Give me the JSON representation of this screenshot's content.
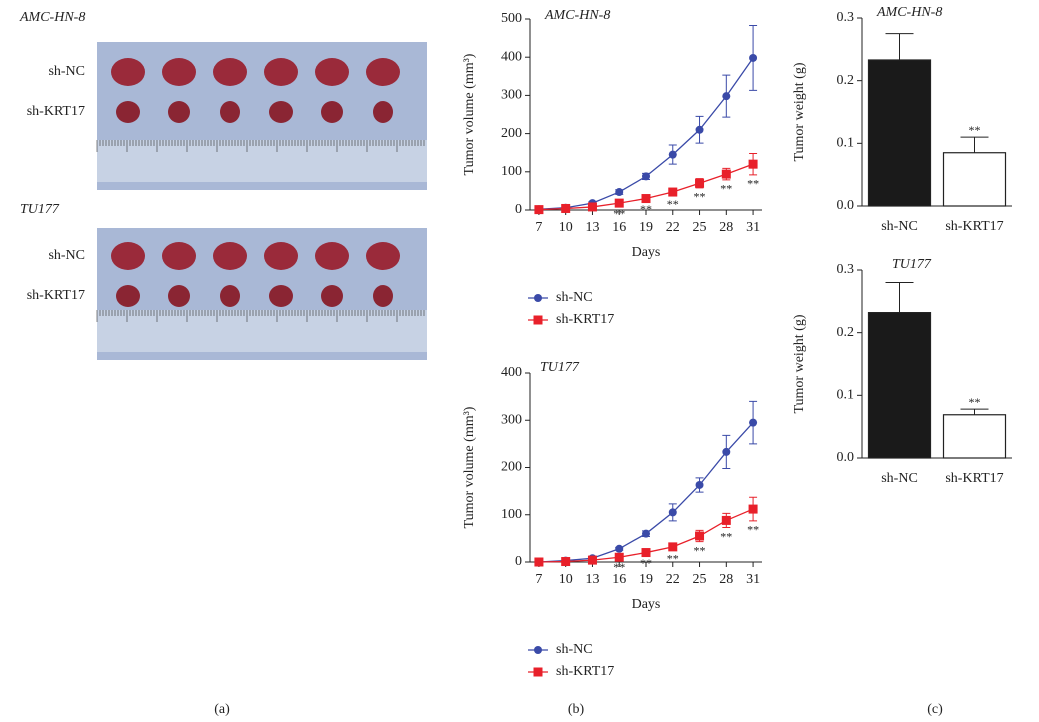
{
  "panel_a": {
    "groups": [
      {
        "title": "AMC-HN-8",
        "rows": [
          "sh-NC",
          "sh-KRT17"
        ]
      },
      {
        "title": "TU177",
        "rows": [
          "sh-NC",
          "sh-KRT17"
        ]
      }
    ]
  },
  "panel_labels": [
    "(a)",
    "(b)",
    "(c)"
  ],
  "chart_data": [
    {
      "type": "line",
      "title": "AMC-HN-8",
      "x_label": "Days",
      "y_label": "Tumor volume (mm³)",
      "x": [
        7,
        10,
        13,
        16,
        19,
        22,
        25,
        28,
        31
      ],
      "xlim": [
        6,
        32
      ],
      "xticks": [
        7,
        10,
        13,
        16,
        19,
        22,
        25,
        28,
        31
      ],
      "ylim": [
        0,
        500
      ],
      "yticks": [
        0,
        100,
        200,
        300,
        400,
        500
      ],
      "series": [
        {
          "name": "sh-NC",
          "color": "#3a4aa8",
          "marker": "circle",
          "values": [
            2,
            6,
            18,
            47,
            88,
            145,
            210,
            298,
            398
          ],
          "errors": [
            1,
            2,
            4,
            6,
            8,
            25,
            35,
            55,
            85
          ]
        },
        {
          "name": "sh-KRT17",
          "color": "#e8202a",
          "marker": "square",
          "values": [
            1,
            4,
            8,
            18,
            30,
            47,
            70,
            94,
            120
          ],
          "errors": [
            1,
            1,
            2,
            4,
            5,
            8,
            12,
            15,
            28
          ]
        }
      ],
      "annotations": [
        {
          "x": 16,
          "text": "**"
        },
        {
          "x": 19,
          "text": "**"
        },
        {
          "x": 22,
          "text": "**"
        },
        {
          "x": 25,
          "text": "**"
        },
        {
          "x": 28,
          "text": "**"
        },
        {
          "x": 31,
          "text": "**"
        }
      ]
    },
    {
      "type": "line",
      "title": "TU177",
      "x_label": "Days",
      "y_label": "Tumor volume (mm³)",
      "x": [
        7,
        10,
        13,
        16,
        19,
        22,
        25,
        28,
        31
      ],
      "xlim": [
        6,
        32
      ],
      "xticks": [
        7,
        10,
        13,
        16,
        19,
        22,
        25,
        28,
        31
      ],
      "ylim": [
        0,
        400
      ],
      "yticks": [
        0,
        100,
        200,
        300,
        400
      ],
      "series": [
        {
          "name": "sh-NC",
          "color": "#3a4aa8",
          "marker": "circle",
          "values": [
            0,
            3,
            8,
            28,
            60,
            105,
            163,
            233,
            295
          ],
          "errors": [
            1,
            1,
            2,
            3,
            6,
            18,
            15,
            35,
            45
          ]
        },
        {
          "name": "sh-KRT17",
          "color": "#e8202a",
          "marker": "square",
          "values": [
            0,
            1,
            4,
            10,
            20,
            32,
            55,
            88,
            112
          ],
          "errors": [
            1,
            1,
            1,
            2,
            4,
            6,
            12,
            15,
            25
          ]
        }
      ],
      "annotations": [
        {
          "x": 16,
          "text": "**"
        },
        {
          "x": 19,
          "text": "**"
        },
        {
          "x": 22,
          "text": "**"
        },
        {
          "x": 25,
          "text": "**"
        },
        {
          "x": 28,
          "text": "**"
        },
        {
          "x": 31,
          "text": "**"
        }
      ]
    },
    {
      "type": "bar",
      "title": "AMC-HN-8",
      "y_label": "Tumor weight (g)",
      "categories": [
        "sh-NC",
        "sh-KRT17"
      ],
      "values": [
        0.233,
        0.085
      ],
      "errors": [
        0.042,
        0.025
      ],
      "colors": [
        "#1a1a1a",
        "#ffffff"
      ],
      "ylim": [
        0,
        0.3
      ],
      "yticks": [
        {
          "value": 0,
          "label": "0.0"
        },
        0.1,
        0.2,
        0.3
      ],
      "annotations": [
        {
          "x": "sh-KRT17",
          "text": "**"
        }
      ]
    },
    {
      "type": "bar",
      "title": "TU177",
      "y_label": "Tumor weight (g)",
      "categories": [
        "sh-NC",
        "sh-KRT17"
      ],
      "values": [
        0.232,
        0.069
      ],
      "errors": [
        0.048,
        0.009
      ],
      "colors": [
        "#1a1a1a",
        "#ffffff"
      ],
      "ylim": [
        0,
        0.3
      ],
      "yticks": [
        {
          "value": 0,
          "label": "0.0"
        },
        0.1,
        0.2,
        0.3
      ],
      "annotations": [
        {
          "x": "sh-KRT17",
          "text": "**"
        }
      ]
    }
  ]
}
